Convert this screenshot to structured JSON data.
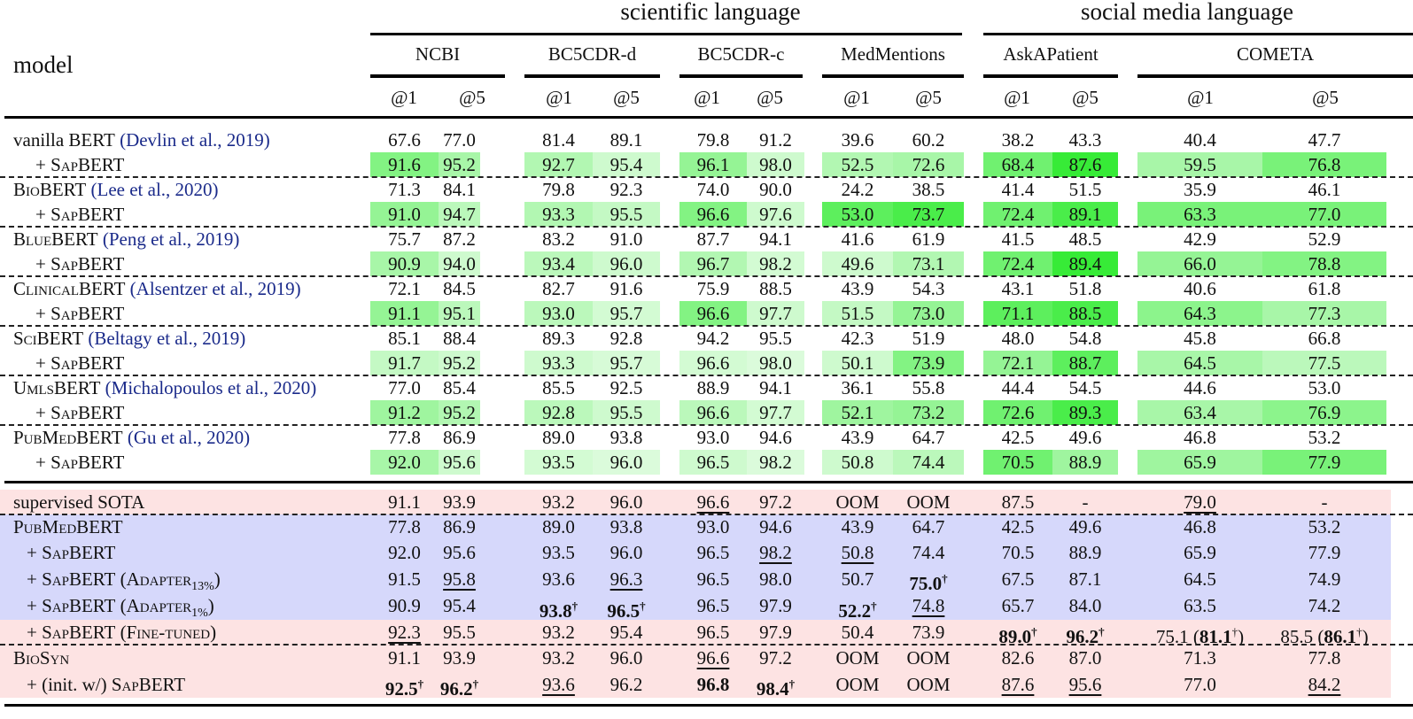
{
  "header": {
    "model_label": "model",
    "groups": [
      {
        "label": "scientific language"
      },
      {
        "label": "social media language"
      }
    ],
    "datasets": [
      "NCBI",
      "BC5CDR-d",
      "BC5CDR-c",
      "MedMentions",
      "AskAPatient",
      "COMETA"
    ],
    "k_labels": [
      "@1",
      "@5"
    ]
  },
  "colors": {
    "pink_band": "#fde3e3",
    "blue_band": "#d6d8fb",
    "green_dark": "#3ef03e",
    "green_light": "#e6fce6"
  },
  "top_rows": [
    {
      "name": "vanilla BERT",
      "cite": "(Devlin et al., 2019)",
      "values": [
        "67.6",
        "77.0",
        "81.4",
        "89.1",
        "79.8",
        "91.2",
        "39.6",
        "60.2",
        "38.2",
        "43.3",
        "40.4",
        "47.7"
      ]
    },
    {
      "name": "+ SapBERT",
      "values": [
        "91.6",
        "95.2",
        "92.7",
        "95.4",
        "96.1",
        "98.0",
        "52.5",
        "72.6",
        "68.4",
        "87.6",
        "59.5",
        "76.8"
      ],
      "shade": [
        0.55,
        0.35,
        0.3,
        0.15,
        0.45,
        0.15,
        0.3,
        0.35,
        0.65,
        0.95,
        0.35,
        0.6
      ]
    },
    {
      "name": "BioBERT",
      "cite": "(Lee et al., 2020)",
      "values": [
        "71.3",
        "84.1",
        "79.8",
        "92.3",
        "74.0",
        "90.0",
        "24.2",
        "38.5",
        "41.4",
        "51.5",
        "35.9",
        "46.1"
      ]
    },
    {
      "name": "+ SapBERT",
      "values": [
        "91.0",
        "94.7",
        "93.3",
        "95.5",
        "96.6",
        "97.6",
        "53.0",
        "73.7",
        "72.4",
        "89.1",
        "63.3",
        "77.0"
      ],
      "shade": [
        0.45,
        0.25,
        0.3,
        0.2,
        0.55,
        0.15,
        0.75,
        0.85,
        0.65,
        0.85,
        0.6,
        0.6
      ]
    },
    {
      "name": "BlueBERT",
      "cite": "(Peng et al., 2019)",
      "values": [
        "75.7",
        "87.2",
        "83.2",
        "91.0",
        "87.7",
        "94.1",
        "41.6",
        "61.9",
        "41.5",
        "48.5",
        "42.9",
        "52.9"
      ]
    },
    {
      "name": "+ SapBERT",
      "values": [
        "90.9",
        "94.0",
        "93.4",
        "96.0",
        "96.7",
        "98.2",
        "49.6",
        "73.1",
        "72.4",
        "89.4",
        "66.0",
        "78.8"
      ],
      "shade": [
        0.35,
        0.15,
        0.25,
        0.15,
        0.3,
        0.12,
        0.15,
        0.3,
        0.65,
        0.95,
        0.45,
        0.55
      ]
    },
    {
      "name": "ClinicalBERT",
      "cite": "(Alsentzer et al., 2019)",
      "values": [
        "72.1",
        "84.5",
        "82.7",
        "91.6",
        "75.9",
        "88.5",
        "43.9",
        "54.3",
        "43.1",
        "51.8",
        "40.6",
        "61.8"
      ]
    },
    {
      "name": "+ SapBERT",
      "values": [
        "91.1",
        "95.1",
        "93.0",
        "95.7",
        "96.6",
        "97.7",
        "51.5",
        "73.0",
        "71.1",
        "88.5",
        "64.3",
        "77.3"
      ],
      "shade": [
        0.45,
        0.25,
        0.25,
        0.12,
        0.55,
        0.15,
        0.2,
        0.45,
        0.75,
        0.85,
        0.5,
        0.35
      ]
    },
    {
      "name": "SciBERT",
      "cite": "(Beltagy et al., 2019)",
      "values": [
        "85.1",
        "88.4",
        "89.3",
        "92.8",
        "94.2",
        "95.5",
        "42.3",
        "51.9",
        "48.0",
        "54.8",
        "45.8",
        "66.8"
      ]
    },
    {
      "name": "+ SapBERT",
      "values": [
        "91.7",
        "95.2",
        "93.3",
        "95.7",
        "96.6",
        "98.0",
        "50.1",
        "73.9",
        "72.1",
        "88.7",
        "64.5",
        "77.5"
      ],
      "shade": [
        0.2,
        0.15,
        0.15,
        0.1,
        0.12,
        0.08,
        0.15,
        0.55,
        0.45,
        0.75,
        0.35,
        0.25
      ]
    },
    {
      "name": "UmlsBERT",
      "cite": "(Michalopoulos et al., 2020)",
      "values": [
        "77.0",
        "85.4",
        "85.5",
        "92.5",
        "88.9",
        "94.1",
        "36.1",
        "55.8",
        "44.4",
        "54.5",
        "44.6",
        "53.0"
      ]
    },
    {
      "name": "+ SapBERT",
      "values": [
        "91.2",
        "95.2",
        "92.8",
        "95.5",
        "96.6",
        "97.7",
        "52.1",
        "73.2",
        "72.6",
        "89.3",
        "63.4",
        "76.9"
      ],
      "shade": [
        0.4,
        0.3,
        0.25,
        0.15,
        0.25,
        0.12,
        0.4,
        0.45,
        0.65,
        0.85,
        0.35,
        0.5
      ]
    },
    {
      "name": "PubMedBERT",
      "cite": "(Gu et al., 2020)",
      "values": [
        "77.8",
        "86.9",
        "89.0",
        "93.8",
        "93.0",
        "94.6",
        "43.9",
        "64.7",
        "42.5",
        "49.6",
        "46.8",
        "53.2"
      ]
    },
    {
      "name": "+ SapBERT",
      "values": [
        "92.0",
        "95.6",
        "93.5",
        "96.0",
        "96.5",
        "98.2",
        "50.8",
        "74.4",
        "70.5",
        "88.9",
        "65.9",
        "77.9"
      ],
      "shade": [
        0.35,
        0.15,
        0.12,
        0.08,
        0.15,
        0.08,
        0.15,
        0.25,
        0.65,
        0.4,
        0.4,
        0.6
      ]
    }
  ],
  "bottom_rows": [
    {
      "name": "supervised SOTA",
      "band": "pink",
      "values": [
        {
          "v": "91.1"
        },
        {
          "v": "93.9"
        },
        {
          "v": "93.2"
        },
        {
          "v": "96.0"
        },
        {
          "v": "96.6",
          "u": true
        },
        {
          "v": "97.2"
        },
        {
          "v": "OOM"
        },
        {
          "v": "OOM"
        },
        {
          "v": "87.5"
        },
        {
          "v": "-"
        },
        {
          "v": "79.0",
          "u": true
        },
        {
          "v": "-"
        }
      ]
    },
    {
      "name": "PubMedBERT",
      "band": "blue",
      "values": [
        {
          "v": "77.8"
        },
        {
          "v": "86.9"
        },
        {
          "v": "89.0"
        },
        {
          "v": "93.8"
        },
        {
          "v": "93.0"
        },
        {
          "v": "94.6"
        },
        {
          "v": "43.9"
        },
        {
          "v": "64.7"
        },
        {
          "v": "42.5"
        },
        {
          "v": "49.6"
        },
        {
          "v": "46.8"
        },
        {
          "v": "53.2"
        }
      ]
    },
    {
      "name": "+ SapBERT",
      "band": "blue",
      "values": [
        {
          "v": "92.0"
        },
        {
          "v": "95.6"
        },
        {
          "v": "93.5"
        },
        {
          "v": "96.0"
        },
        {
          "v": "96.5"
        },
        {
          "v": "98.2",
          "u": true
        },
        {
          "v": "50.8",
          "u": true
        },
        {
          "v": "74.4"
        },
        {
          "v": "70.5"
        },
        {
          "v": "88.9"
        },
        {
          "v": "65.9"
        },
        {
          "v": "77.9"
        }
      ]
    },
    {
      "name": "+ SapBERT (Adapter13%)",
      "name_main": "+ SapBERT (Adapter",
      "name_sub": "13%",
      "name_end": ")",
      "band": "blue",
      "values": [
        {
          "v": "91.5"
        },
        {
          "v": "95.8",
          "u": true
        },
        {
          "v": "93.6"
        },
        {
          "v": "96.3",
          "u": true
        },
        {
          "v": "96.5"
        },
        {
          "v": "98.0"
        },
        {
          "v": "50.7"
        },
        {
          "v": "75.0",
          "b": true,
          "d": true
        },
        {
          "v": "67.5"
        },
        {
          "v": "87.1"
        },
        {
          "v": "64.5"
        },
        {
          "v": "74.9"
        }
      ]
    },
    {
      "name": "+ SapBERT (Adapter1%)",
      "name_main": "+ SapBERT (Adapter",
      "name_sub": "1%",
      "name_end": ")",
      "band": "blue",
      "values": [
        {
          "v": "90.9"
        },
        {
          "v": "95.4"
        },
        {
          "v": "93.8",
          "b": true,
          "d": true
        },
        {
          "v": "96.5",
          "b": true,
          "d": true
        },
        {
          "v": "96.5"
        },
        {
          "v": "97.9"
        },
        {
          "v": "52.2",
          "b": true,
          "d": true
        },
        {
          "v": "74.8",
          "u": true
        },
        {
          "v": "65.7"
        },
        {
          "v": "84.0"
        },
        {
          "v": "63.5"
        },
        {
          "v": "74.2"
        }
      ]
    },
    {
      "name": "+ SapBERT (Fine-tuned)",
      "band": "pink",
      "values": [
        {
          "v": "92.3",
          "u": true
        },
        {
          "v": "95.5"
        },
        {
          "v": "93.2"
        },
        {
          "v": "95.4"
        },
        {
          "v": "96.5"
        },
        {
          "v": "97.9"
        },
        {
          "v": "50.4"
        },
        {
          "v": "73.9"
        },
        {
          "v": "89.0",
          "b": true,
          "d": true
        },
        {
          "v": "96.2",
          "b": true,
          "d": true
        },
        {
          "v": "75.1",
          "paren": "81.1"
        },
        {
          "v": "85.5",
          "paren": "86.1"
        }
      ]
    },
    {
      "name": "BioSyn",
      "band": "pink",
      "values": [
        {
          "v": "91.1"
        },
        {
          "v": "93.9"
        },
        {
          "v": "93.2"
        },
        {
          "v": "96.0"
        },
        {
          "v": "96.6",
          "u": true
        },
        {
          "v": "97.2"
        },
        {
          "v": "OOM"
        },
        {
          "v": "OOM"
        },
        {
          "v": "82.6"
        },
        {
          "v": "87.0"
        },
        {
          "v": "71.3"
        },
        {
          "v": "77.8"
        }
      ]
    },
    {
      "name": "+ (init. w/) SapBERT",
      "band": "pink",
      "values": [
        {
          "v": "92.5",
          "b": true,
          "d": true
        },
        {
          "v": "96.2",
          "b": true,
          "d": true
        },
        {
          "v": "93.6",
          "u": true
        },
        {
          "v": "96.2"
        },
        {
          "v": "96.8",
          "b": true
        },
        {
          "v": "98.4",
          "b": true,
          "d": true
        },
        {
          "v": "OOM"
        },
        {
          "v": "OOM"
        },
        {
          "v": "87.6",
          "u": true
        },
        {
          "v": "95.6",
          "u": true
        },
        {
          "v": "77.0"
        },
        {
          "v": "84.2",
          "u": true
        }
      ]
    }
  ]
}
